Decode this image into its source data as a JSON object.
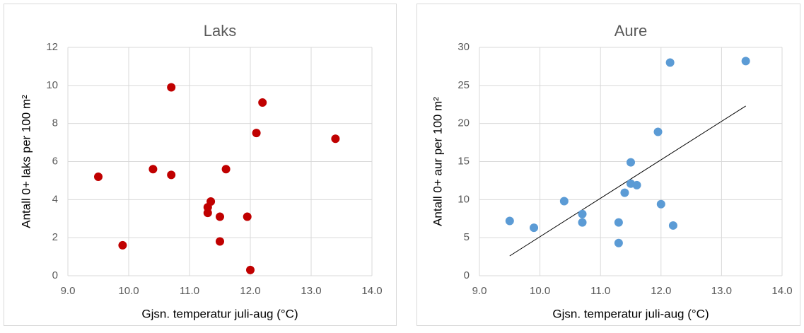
{
  "chart_data": [
    {
      "type": "scatter",
      "title": "Laks",
      "x_label": "Gjsn. temperatur juli-aug (°C)",
      "y_label": "Antall 0+ laks per 100 m²",
      "x": [
        9.5,
        9.9,
        10.4,
        10.7,
        10.7,
        11.3,
        11.3,
        11.35,
        11.5,
        11.5,
        11.6,
        11.95,
        12.0,
        12.1,
        12.2,
        13.4
      ],
      "values": [
        5.2,
        1.6,
        5.6,
        9.9,
        5.3,
        3.6,
        3.3,
        3.9,
        3.1,
        1.8,
        5.6,
        3.1,
        0.3,
        7.5,
        9.1,
        7.2
      ],
      "color": "#c00000",
      "xlim": [
        9,
        14
      ],
      "xticks": [
        {
          "value": 9,
          "label": "9.0"
        },
        {
          "value": 10,
          "label": "10.0"
        },
        {
          "value": 11,
          "label": "11.0"
        },
        {
          "value": 12,
          "label": "12.0"
        },
        {
          "value": 13,
          "label": "13.0"
        },
        {
          "value": 14,
          "label": "14.0"
        }
      ],
      "ylim": [
        0,
        12
      ],
      "yticks": [
        0,
        2,
        4,
        6,
        8,
        10,
        12
      ],
      "grid": true
    },
    {
      "type": "scatter",
      "title": "Aure",
      "x_label": "Gjsn. temperatur juli-aug (°C)",
      "y_label": "Antall 0+ aur per 100 m²",
      "x": [
        9.5,
        9.9,
        10.4,
        10.7,
        10.7,
        11.3,
        11.3,
        11.4,
        11.5,
        11.5,
        11.6,
        11.95,
        12.0,
        12.15,
        12.2,
        13.4
      ],
      "values": [
        7.2,
        6.3,
        9.8,
        8.1,
        7.0,
        7.0,
        4.3,
        10.9,
        14.9,
        12.1,
        11.9,
        18.9,
        9.4,
        28.0,
        6.6,
        28.2
      ],
      "color": "#5b9bd5",
      "trendline": {
        "x": [
          9.5,
          13.4
        ],
        "values": [
          2.6,
          22.3
        ],
        "color": "#000000"
      },
      "xlim": [
        9,
        14
      ],
      "xticks": [
        {
          "value": 9,
          "label": "9.0"
        },
        {
          "value": 10,
          "label": "10.0"
        },
        {
          "value": 11,
          "label": "11.0"
        },
        {
          "value": 12,
          "label": "12.0"
        },
        {
          "value": 13,
          "label": "13.0"
        },
        {
          "value": 14,
          "label": "14.0"
        }
      ],
      "ylim": [
        0,
        30
      ],
      "yticks": [
        0,
        5,
        10,
        15,
        20,
        25,
        30
      ],
      "grid": true
    }
  ]
}
